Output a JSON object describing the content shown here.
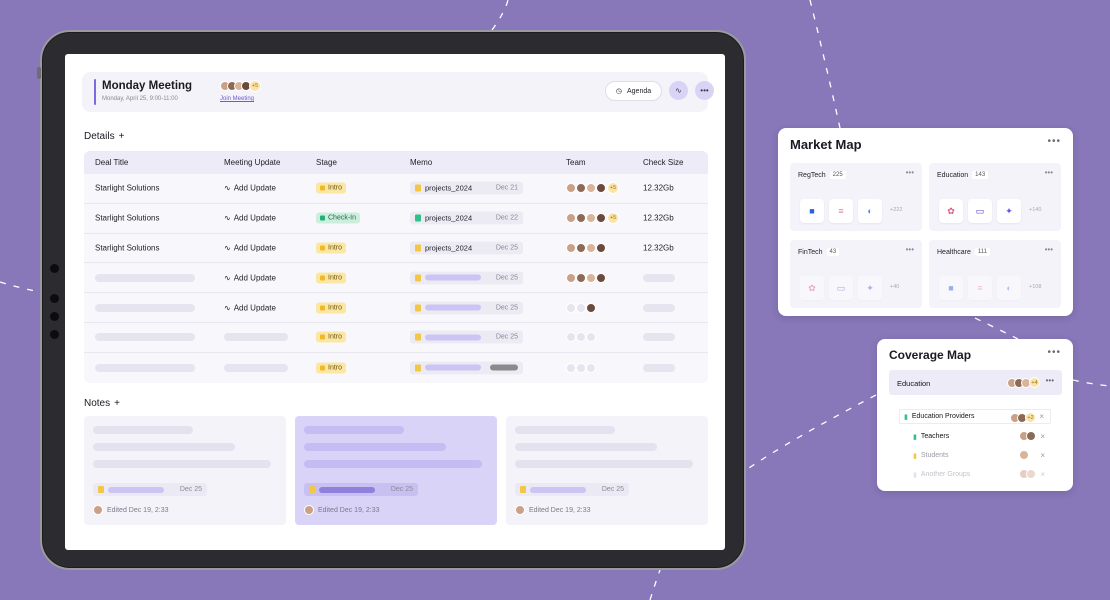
{
  "meeting": {
    "title": "Monday Meeting",
    "subtitle": "Monday, April 25, 9:00-11:00",
    "attendee_more": "+5",
    "join_label": "Join Meeting",
    "agenda_label": "Agenda"
  },
  "details": {
    "heading": "Details",
    "add": "+",
    "columns": [
      "Deal Title",
      "Meeting Update",
      "Stage",
      "Memo",
      "Team",
      "Check Size"
    ],
    "rows": [
      {
        "title": "Starlight Solutions",
        "update": "Add Update",
        "stage": "Intro",
        "memo": "projects_2024",
        "date": "Dec 21",
        "team_more": "+5",
        "size": "12.32Gb"
      },
      {
        "title": "Starlight Solutions",
        "update": "Add Update",
        "stage": "Check-In",
        "memo": "projects_2024",
        "date": "Dec 22",
        "team_more": "+5",
        "size": "12.32Gb"
      },
      {
        "title": "Starlight Solutions",
        "update": "Add Update",
        "stage": "Intro",
        "memo": "projects_2024",
        "date": "Dec 25",
        "team_more": "",
        "size": "12.32Gb"
      },
      {
        "title": "",
        "update": "Add Update",
        "stage": "Intro",
        "memo": "",
        "date": "Dec 25",
        "team_more": "",
        "size": ""
      },
      {
        "title": "",
        "update": "Add Update",
        "stage": "Intro",
        "memo": "",
        "date": "Dec 25",
        "team_more": "",
        "size": ""
      },
      {
        "title": "",
        "update": "",
        "stage": "Intro",
        "memo": "",
        "date": "Dec 25",
        "team_more": "",
        "size": ""
      },
      {
        "title": "",
        "update": "",
        "stage": "Intro",
        "memo": "",
        "date": "",
        "team_more": "",
        "size": ""
      }
    ]
  },
  "notes": {
    "heading": "Notes",
    "add": "+",
    "items": [
      {
        "date": "Dec 25",
        "edited": "Edited Dec 19, 2:33"
      },
      {
        "date": "Dec 25",
        "edited": "Edited Dec 19, 2:33"
      },
      {
        "date": "Dec 25",
        "edited": "Edited Dec 19, 2:33"
      }
    ]
  },
  "market_map": {
    "title": "Market Map",
    "sectors": [
      {
        "name": "RegTech",
        "count": "225",
        "more": "+222"
      },
      {
        "name": "Education",
        "count": "143",
        "more": "+140"
      },
      {
        "name": "FinTech",
        "count": "43",
        "more": "+40"
      },
      {
        "name": "Healthcare",
        "count": "111",
        "more": "+108"
      }
    ]
  },
  "coverage_map": {
    "title": "Coverage Map",
    "group": "Education",
    "group_more": "+4",
    "items": [
      {
        "label": "Education Providers",
        "more": "+2"
      },
      {
        "label": "Teachers"
      },
      {
        "label": "Students"
      },
      {
        "label": "Another Groups"
      }
    ]
  },
  "colors": {
    "background": "#8877b9",
    "accent": "#7b6ae0",
    "intro": "#fbe7a3",
    "checkin": "#cdeedd"
  }
}
